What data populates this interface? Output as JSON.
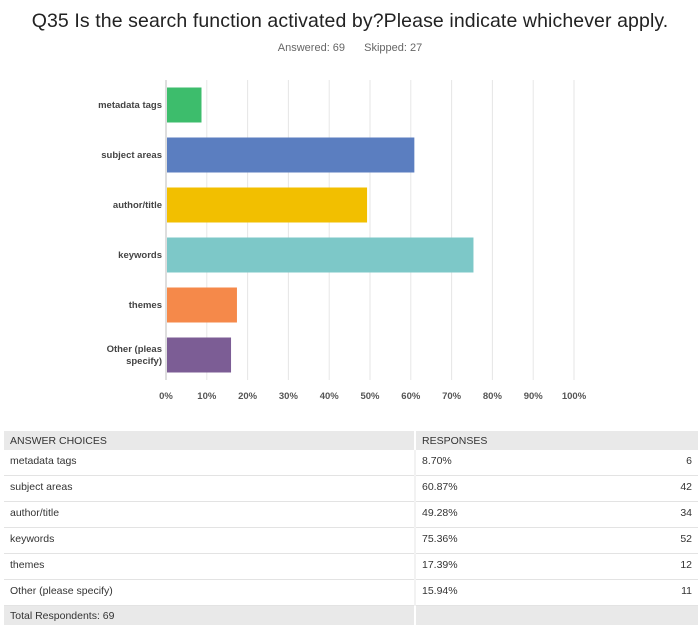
{
  "question": {
    "title": "Q35 Is the search function activated by?Please indicate whichever apply."
  },
  "stats": {
    "answered": "Answered: 69",
    "skipped": "Skipped: 27"
  },
  "chart_data": {
    "type": "bar",
    "orientation": "horizontal",
    "categories": [
      "metadata tags",
      "subject areas",
      "author/title",
      "keywords",
      "themes",
      "Other (please specify)"
    ],
    "values": [
      8.7,
      60.87,
      49.28,
      75.36,
      17.39,
      15.94
    ],
    "colors": [
      "#3dbd6c",
      "#5b7ec0",
      "#f2bf00",
      "#7dc8c8",
      "#f5894a",
      "#7c5d95"
    ],
    "xlim": [
      0,
      100
    ],
    "xticks": [
      "0%",
      "10%",
      "20%",
      "30%",
      "40%",
      "50%",
      "60%",
      "70%",
      "80%",
      "90%",
      "100%"
    ],
    "grid": true
  },
  "table": {
    "headers": {
      "choice": "ANSWER CHOICES",
      "responses": "RESPONSES"
    },
    "rows": [
      {
        "choice": "metadata tags",
        "percent": "8.70%",
        "count": "6"
      },
      {
        "choice": "subject areas",
        "percent": "60.87%",
        "count": "42"
      },
      {
        "choice": "author/title",
        "percent": "49.28%",
        "count": "34"
      },
      {
        "choice": "keywords",
        "percent": "75.36%",
        "count": "52"
      },
      {
        "choice": "themes",
        "percent": "17.39%",
        "count": "12"
      },
      {
        "choice": "Other (please specify)",
        "percent": "15.94%",
        "count": "11"
      }
    ],
    "total": "Total Respondents: 69"
  }
}
